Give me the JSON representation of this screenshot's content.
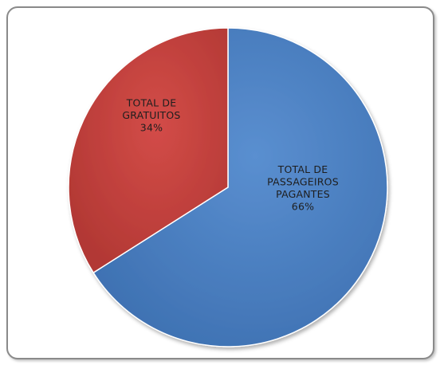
{
  "chart_data": {
    "type": "pie",
    "title": "",
    "slices": [
      {
        "label_lines": [
          "TOTAL DE",
          "PASSAGEIROS",
          "PAGANTES"
        ],
        "value": 66,
        "percent_label": "66%",
        "color": "#4a7ebf"
      },
      {
        "label_lines": [
          "TOTAL DE",
          "GRATUITOS"
        ],
        "value": 34,
        "percent_label": "34%",
        "color": "#c0403d"
      }
    ],
    "start_angle_deg": 0,
    "direction": "clockwise",
    "legend": "none"
  }
}
